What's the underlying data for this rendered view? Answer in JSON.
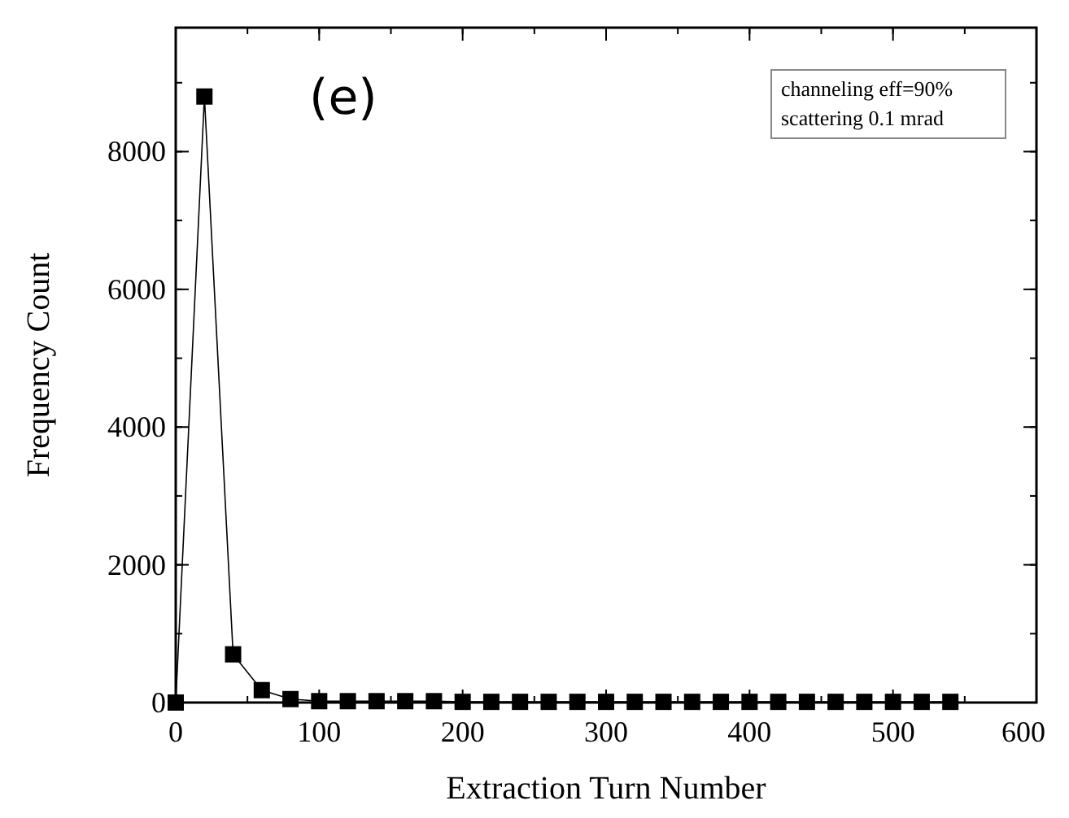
{
  "chart_data": {
    "type": "line",
    "xlabel": "Extraction Turn Number",
    "ylabel": "Frequency Count",
    "marker": "square",
    "color": "#000000",
    "x": [
      0,
      20,
      40,
      60,
      80,
      100,
      120,
      140,
      160,
      180,
      200,
      220,
      240,
      260,
      280,
      300,
      320,
      340,
      360,
      380,
      400,
      420,
      440,
      460,
      480,
      500,
      520,
      540
    ],
    "values": [
      0,
      8800,
      700,
      180,
      50,
      20,
      20,
      20,
      20,
      20,
      10,
      10,
      10,
      10,
      10,
      10,
      10,
      10,
      10,
      10,
      10,
      10,
      10,
      10,
      10,
      10,
      10,
      10
    ],
    "xlim": [
      0,
      600
    ],
    "xticks": [
      0,
      100,
      200,
      300,
      400,
      500,
      600
    ],
    "ylim": [
      0,
      9800
    ],
    "yticks": [
      0,
      2000,
      4000,
      6000,
      8000
    ],
    "annotations": [
      "(e)",
      "channeling eff=90%",
      "scattering 0.1 mrad"
    ]
  }
}
